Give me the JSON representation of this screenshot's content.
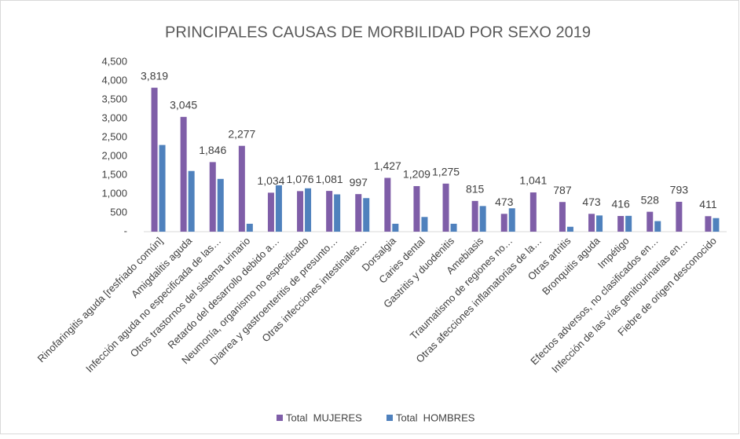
{
  "chart_data": {
    "type": "bar",
    "title": "PRINCIPALES CAUSAS DE MORBILIDAD POR SEXO 2019",
    "categories": [
      "Rinofaringitis aguda [resfriado común]",
      "Amigdalitis aguda",
      "Infección aguda no especificada de las…",
      "Otros trastornos del sistema urinario",
      "Retardo del desarrollo debido a…",
      "Neumonía, organismo no especificado",
      "Diarrea y gastroenteritis de presunto…",
      "Otras infecciones intestinales…",
      "Dorsalgia",
      "Caries dental",
      "Gastritis y duodenitis",
      "Amebiasis",
      "Traumatismo de regiones no…",
      "Otras afecciones inflamatorias de la…",
      "Otras artritis",
      "Bronquitis aguda",
      "Impétigo",
      "Efectos adversos, no clasificados en…",
      "Infección de las vías genitourinarias en…",
      "Fiebre de origen desconocido"
    ],
    "series": [
      {
        "name": "Total  MUJERES",
        "color": "#7f5ea8",
        "values": [
          3819,
          3045,
          1846,
          2277,
          1034,
          1076,
          1081,
          997,
          1427,
          1209,
          1275,
          815,
          473,
          1041,
          787,
          473,
          416,
          528,
          793,
          411
        ],
        "value_labels": [
          "3,819",
          "3,045",
          "1,846",
          "2,277",
          "1,034",
          "1,076",
          "1,081",
          "997",
          "1,427",
          "1,209",
          "1,275",
          "815",
          "473",
          "1,041",
          "787",
          "473",
          "416",
          "528",
          "793",
          "411"
        ]
      },
      {
        "name": "Total  HOMBRES",
        "color": "#4f81bd",
        "values": [
          2300,
          1610,
          1400,
          210,
          1230,
          1150,
          990,
          890,
          210,
          390,
          210,
          680,
          620,
          0,
          130,
          430,
          420,
          280,
          0,
          360
        ]
      }
    ],
    "ylim": [
      0,
      4500
    ],
    "yticks": [
      {
        "value": 0,
        "label": "-"
      },
      500,
      {
        "value": 1000,
        "label": "1,000"
      },
      {
        "value": 1500,
        "label": "1,500"
      },
      {
        "value": 2000,
        "label": "2,000"
      },
      {
        "value": 2500,
        "label": "2,500"
      },
      {
        "value": 3000,
        "label": "3,000"
      },
      {
        "value": 3500,
        "label": "3,500"
      },
      {
        "value": 4000,
        "label": "4,000"
      },
      {
        "value": 4500,
        "label": "4,500"
      }
    ]
  }
}
